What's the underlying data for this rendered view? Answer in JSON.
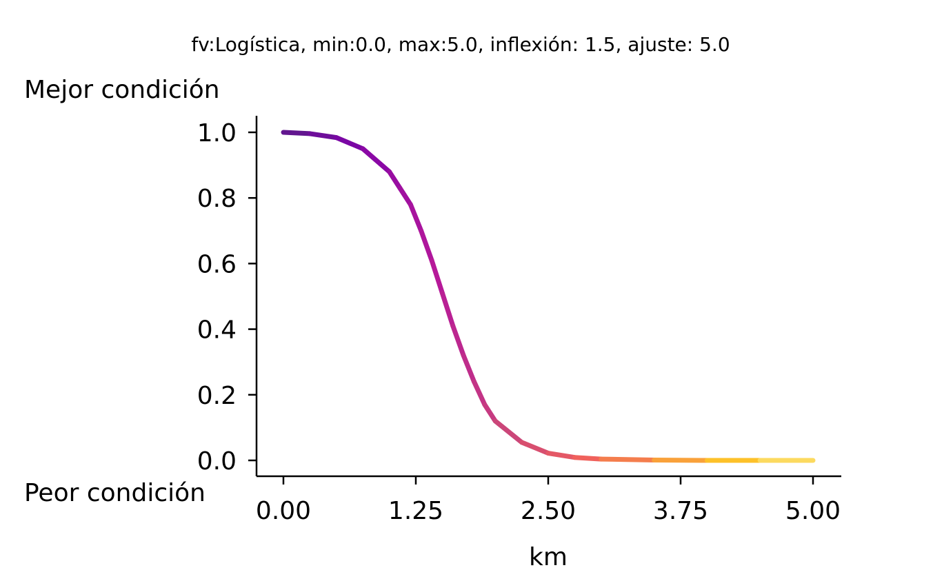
{
  "chart_data": {
    "type": "line",
    "title": "fv:Logística, min:0.0, max:5.0, inflexión: 1.5, ajuste: 5.0",
    "xlabel": "km",
    "ylabel_top": "Mejor condición",
    "ylabel_bottom": "Peor condición",
    "xlim": [
      -0.25,
      5.25
    ],
    "ylim": [
      -0.05,
      1.05
    ],
    "x_ticks": [
      0.0,
      1.25,
      2.5,
      3.75,
      5.0
    ],
    "x_tick_labels": [
      "0.00",
      "1.25",
      "2.50",
      "3.75",
      "5.00"
    ],
    "y_ticks": [
      0.0,
      0.2,
      0.4,
      0.6,
      0.8,
      1.0
    ],
    "y_tick_labels": [
      "0.0",
      "0.2",
      "0.4",
      "0.6",
      "0.8",
      "1.0"
    ],
    "grid": false,
    "colormap": "plasma",
    "colormap_stops": [
      "#5c1a8a",
      "#7e03a8",
      "#b5189a",
      "#cc4778",
      "#f0605d",
      "#f89540",
      "#fdc328",
      "#fce77d"
    ],
    "series": [
      {
        "x": [
          0.0,
          0.25,
          0.5,
          0.75,
          1.0,
          1.1,
          1.2,
          1.3,
          1.4,
          1.5,
          1.6,
          1.7,
          1.8,
          1.9,
          2.0,
          2.25,
          2.5,
          2.75,
          3.0,
          3.5,
          4.0,
          4.5,
          5.0
        ],
        "y": [
          1.0,
          0.996,
          0.984,
          0.95,
          0.88,
          0.83,
          0.78,
          0.7,
          0.61,
          0.51,
          0.41,
          0.32,
          0.24,
          0.17,
          0.12,
          0.055,
          0.022,
          0.009,
          0.004,
          0.001,
          0.0,
          0.0,
          0.0
        ]
      }
    ]
  }
}
